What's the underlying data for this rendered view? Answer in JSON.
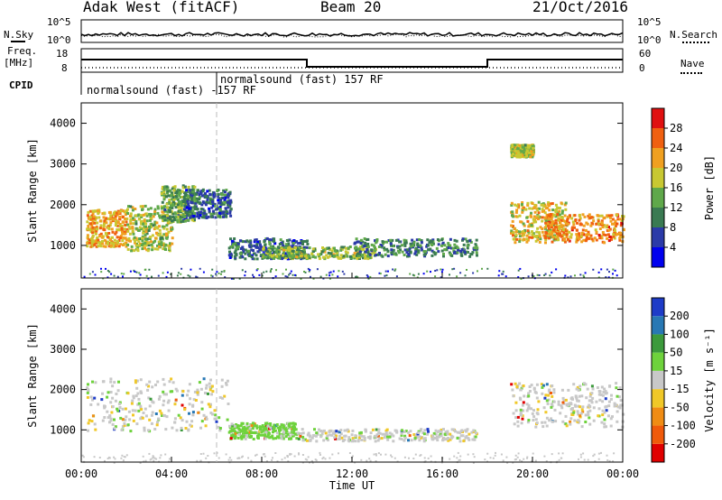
{
  "header": {
    "radar": "Adak West (fitACF)",
    "beam": "Beam 20",
    "date": "21/Oct/2016"
  },
  "left_labels": {
    "nsky": "N.Sky",
    "freq_top": "Freq.",
    "freq_unit": "[MHz]",
    "cpid": "CPID"
  },
  "right_labels": {
    "nsearch": "N.Search",
    "nave": "Nave"
  },
  "noise_axis_left": [
    "10^5",
    "10^0"
  ],
  "noise_axis_right": [
    "10^5",
    "10^0"
  ],
  "freq_axis_left": [
    "18",
    "8"
  ],
  "nave_axis_right": [
    "60",
    "0"
  ],
  "cpid_labels": [
    "normalsound (fast) -157 RF",
    "normalsound (fast) 157 RF"
  ],
  "chart_data": [
    {
      "type": "heatmap",
      "panel": "power",
      "title": "",
      "xlabel": "Time UT",
      "ylabel": "Slant Range [km]",
      "x_ticks": [
        "00:00",
        "04:00",
        "08:00",
        "12:00",
        "16:00",
        "20:00",
        "00:00"
      ],
      "y_ticks": [
        "1000",
        "2000",
        "3000",
        "4000"
      ],
      "ylim": [
        200,
        4500
      ],
      "xlim_hours": [
        0,
        24
      ],
      "colorbar_label": "Power [dB]",
      "colorbar_ticks": [
        "4",
        "8",
        "12",
        "16",
        "20",
        "24",
        "28"
      ],
      "colorbar_range": [
        0,
        30
      ],
      "colors": [
        "#0000ee",
        "#2b3aa8",
        "#3a7a52",
        "#5fa84a",
        "#c8c832",
        "#f0a020",
        "#f06010",
        "#e01010"
      ],
      "regions": [
        {
          "t": [
            0.2,
            2.0
          ],
          "r": [
            1000,
            1900
          ],
          "level": 20
        },
        {
          "t": [
            2.0,
            4.0
          ],
          "r": [
            900,
            2000
          ],
          "level": 16
        },
        {
          "t": [
            3.5,
            5.0
          ],
          "r": [
            1600,
            2500
          ],
          "level": 12
        },
        {
          "t": [
            4.5,
            6.6
          ],
          "r": [
            1700,
            2400
          ],
          "level": 8
        },
        {
          "t": [
            6.5,
            10.0
          ],
          "r": [
            700,
            1200
          ],
          "level": 8
        },
        {
          "t": [
            8.0,
            13.0
          ],
          "r": [
            700,
            1000
          ],
          "level": 14
        },
        {
          "t": [
            12.0,
            17.5
          ],
          "r": [
            750,
            1200
          ],
          "level": 10
        },
        {
          "t": [
            19.0,
            21.5
          ],
          "r": [
            1100,
            2100
          ],
          "level": 18
        },
        {
          "t": [
            20.5,
            24.0
          ],
          "r": [
            1100,
            1800
          ],
          "level": 22
        },
        {
          "t": [
            19.0,
            20.0
          ],
          "r": [
            3200,
            3500
          ],
          "level": 16
        }
      ]
    },
    {
      "type": "heatmap",
      "panel": "velocity",
      "title": "",
      "xlabel": "Time UT",
      "ylabel": "Slant Range [km]",
      "x_ticks": [
        "00:00",
        "04:00",
        "08:00",
        "12:00",
        "16:00",
        "20:00",
        "00:00"
      ],
      "y_ticks": [
        "1000",
        "2000",
        "3000",
        "4000"
      ],
      "ylim": [
        200,
        4500
      ],
      "xlim_hours": [
        0,
        24
      ],
      "colorbar_label": "Velocity [m s⁻¹]",
      "colorbar_ticks": [
        "200",
        "100",
        "50",
        "15",
        "-15",
        "-50",
        "-100",
        "-200"
      ],
      "colorbar_range": [
        -250,
        250
      ],
      "colors": [
        "#1e3cc8",
        "#2878b4",
        "#3c9a3c",
        "#6ed23c",
        "#c8c8c8",
        "#f0c828",
        "#f08c14",
        "#f05a0a",
        "#e00000"
      ],
      "regions": [
        {
          "t": [
            0.2,
            6.5
          ],
          "r": [
            1000,
            2300
          ],
          "value": 0
        },
        {
          "t": [
            6.5,
            9.5
          ],
          "r": [
            800,
            1200
          ],
          "value": 30
        },
        {
          "t": [
            9.5,
            17.5
          ],
          "r": [
            750,
            1050
          ],
          "value": 0
        },
        {
          "t": [
            19.0,
            24.0
          ],
          "r": [
            1100,
            2200
          ],
          "value": 0
        }
      ]
    }
  ]
}
